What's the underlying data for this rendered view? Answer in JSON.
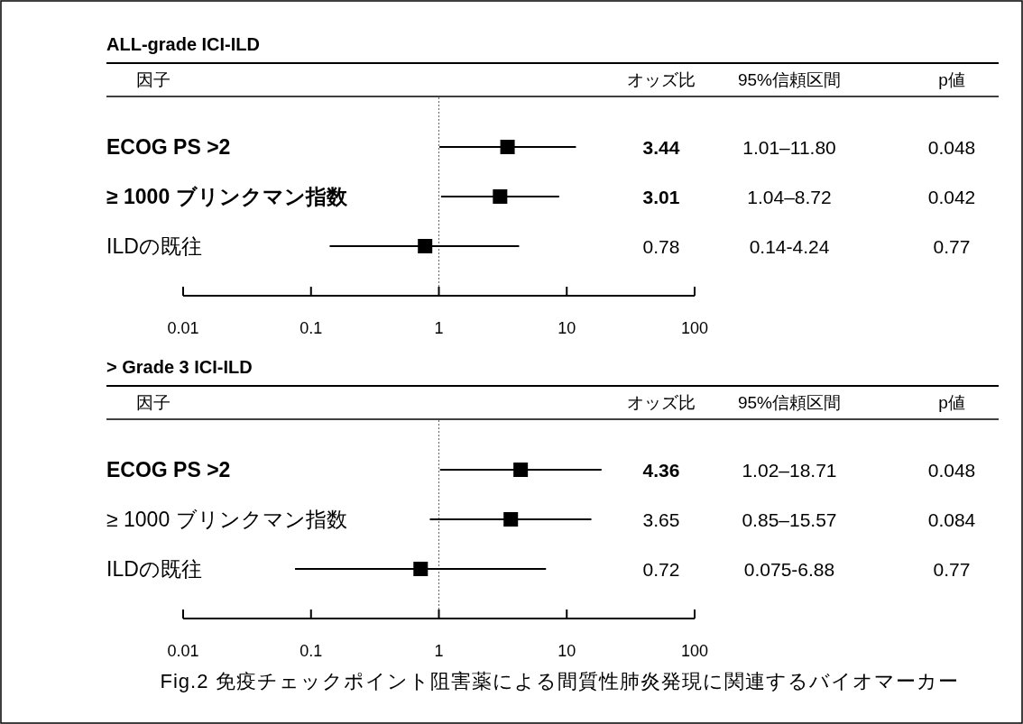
{
  "chart_data": [
    {
      "type": "scatter",
      "title": "ALL-grade ICI-ILD",
      "orientation": "horizontal",
      "log": "x",
      "marker": "square",
      "ylabel": "因子",
      "categories": [
        "ECOG PS >2",
        "≥ 1000 ブリンクマン指数",
        "ILDの既往"
      ],
      "values": [
        3.44,
        3.01,
        0.78
      ],
      "errors": [
        [
          1.01,
          11.8
        ],
        [
          1.04,
          8.72
        ],
        [
          0.14,
          4.24
        ]
      ],
      "xlim": [
        0.01,
        100
      ],
      "xticks": [
        0.01,
        0.1,
        1,
        10,
        100
      ],
      "ref_lines": [
        {
          "axis": "x",
          "value": 1,
          "line_style": "dotted"
        }
      ],
      "annotations": [
        "オッズ比",
        "95%信頼区間",
        "p値",
        "3.44",
        "1.01–11.80",
        "0.048",
        "3.01",
        "1.04–8.72",
        "0.042",
        "0.78",
        "0.14-4.24",
        "0.77"
      ]
    },
    {
      "type": "scatter",
      "title": "> Grade 3 ICI-ILD",
      "orientation": "horizontal",
      "log": "x",
      "marker": "square",
      "ylabel": "因子",
      "categories": [
        "ECOG PS >2",
        "≥ 1000 ブリンクマン指数",
        "ILDの既往"
      ],
      "values": [
        4.36,
        3.65,
        0.72
      ],
      "errors": [
        [
          1.02,
          18.71
        ],
        [
          0.85,
          15.57
        ],
        [
          0.075,
          6.88
        ]
      ],
      "xlim": [
        0.01,
        100
      ],
      "xticks": [
        0.01,
        0.1,
        1,
        10,
        100
      ],
      "ref_lines": [
        {
          "axis": "x",
          "value": 1,
          "line_style": "dotted"
        }
      ],
      "annotations": [
        "オッズ比",
        "95%信頼区間",
        "p値",
        "4.36",
        "1.02–18.71",
        "0.048",
        "3.65",
        "0.85–15.57",
        "0.084",
        "0.72",
        "0.075-6.88",
        "0.77",
        "Fig.2 免疫チェックポイント阻害薬による間質性肺炎発現に関連するバイオマーカー"
      ]
    }
  ]
}
